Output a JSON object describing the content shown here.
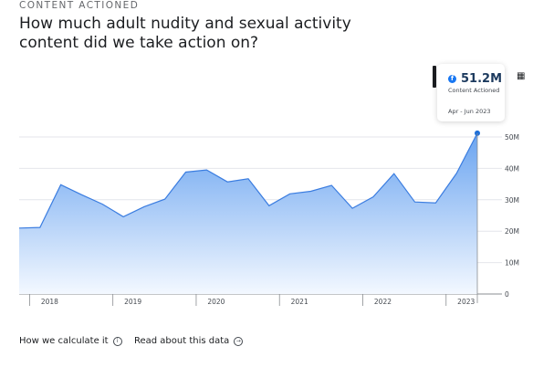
{
  "header": {
    "eyebrow": "CONTENT ACTIONED",
    "title": "How much adult nudity and sexual activity content did we take action on?"
  },
  "tooltip": {
    "value": "51.2M",
    "label": "Content Actioned",
    "date": "Apr - Jun 2023",
    "icon": "facebook-icon"
  },
  "footer": {
    "calc_label": "How we calculate it",
    "read_label": "Read about this data"
  },
  "colors": {
    "line": "#3b7de0",
    "area_top": "#6aa4f0",
    "area_bottom": "#f3f8ff",
    "point": "#1d6fd9"
  },
  "chart_data": {
    "type": "area",
    "x": [
      "Q4 2017",
      "Q1 2018",
      "Q2 2018",
      "Q3 2018",
      "Q4 2018",
      "Q1 2019",
      "Q2 2019",
      "Q3 2019",
      "Q4 2019",
      "Q1 2020",
      "Q2 2020",
      "Q3 2020",
      "Q4 2020",
      "Q1 2021",
      "Q2 2021",
      "Q3 2021",
      "Q4 2021",
      "Q1 2022",
      "Q2 2022",
      "Q3 2022",
      "Q4 2022",
      "Q1 2023",
      "Q2 2023"
    ],
    "values": [
      21,
      21.2,
      34.8,
      31.6,
      28.6,
      24.6,
      27.8,
      30.2,
      38.8,
      39.5,
      35.7,
      36.7,
      28.1,
      31.9,
      32.7,
      34.6,
      27.3,
      30.9,
      38.3,
      29.3,
      29.0,
      38.4,
      51.2
    ],
    "x_tick_labels": [
      "2018",
      "2019",
      "2020",
      "2021",
      "2022",
      "2023"
    ],
    "y_tick_labels": [
      "0",
      "10M",
      "20M",
      "30M",
      "40M",
      "50M"
    ],
    "ylim": [
      0,
      50
    ],
    "grid": true,
    "highlight": {
      "x": "Q2 2023",
      "value": 51.2
    }
  }
}
